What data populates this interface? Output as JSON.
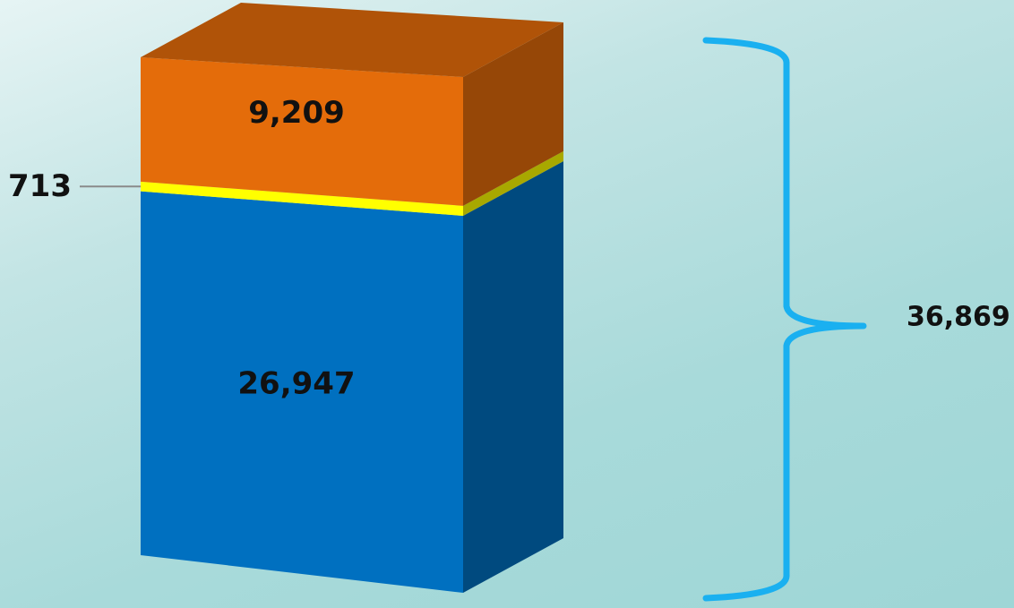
{
  "chart_data": {
    "type": "bar",
    "stacked": true,
    "style": "3d-column",
    "categories": [
      ""
    ],
    "series": [
      {
        "values": [
          26947
        ],
        "color": "#0070c0",
        "label": "26,947"
      },
      {
        "values": [
          713
        ],
        "color": "#ffff00",
        "label": "713"
      },
      {
        "values": [
          9209
        ],
        "color": "#e46c0a",
        "label": "9,209"
      }
    ],
    "total": {
      "value": 36869,
      "label": "36,869",
      "bracket_color": "#1ab0f0"
    },
    "title": "",
    "xlabel": "",
    "ylabel": "",
    "grid": false,
    "legend": "none"
  }
}
